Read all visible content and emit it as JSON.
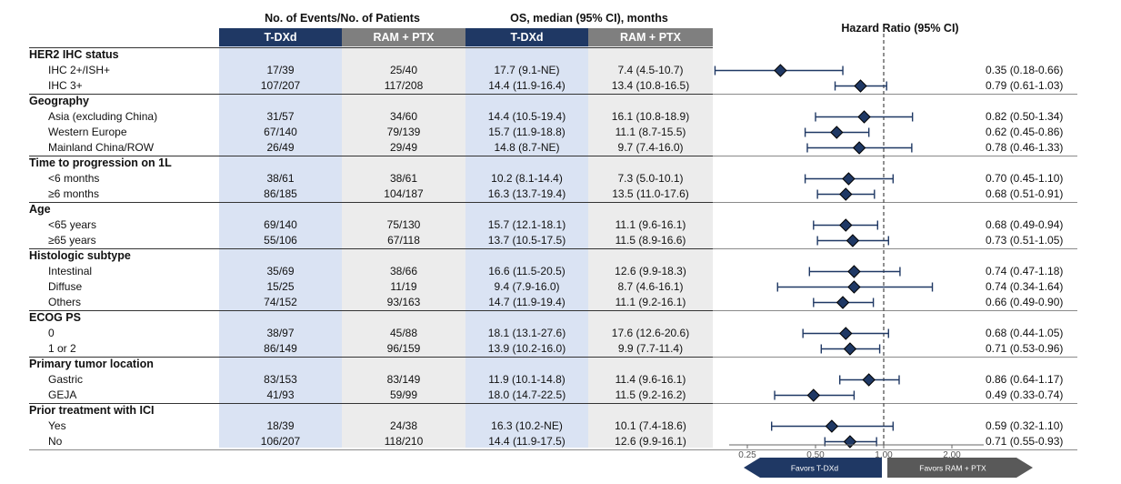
{
  "header": {
    "events_title": "No. of Events/No. of Patients",
    "os_title": "OS, median (95% CI), months",
    "hr_title": "Hazard Ratio (95% CI)",
    "arm1": "T-DXd",
    "arm2": "RAM + PTX"
  },
  "colors": {
    "arm1_header": "#1f3864",
    "arm2_header": "#7f7f7f",
    "arm1_col": "#dae3f3",
    "arm2_col": "#ececec",
    "marker": "#1f3864"
  },
  "groups": [
    {
      "label": "HER2 IHC status",
      "rows": [
        {
          "label": "IHC 2+/ISH+",
          "ev1": "17/39",
          "ev2": "25/40",
          "os1": "17.7 (9.1-NE)",
          "os2": "7.4 (4.5-10.7)",
          "hr_text": "0.35 (0.18-0.66)"
        },
        {
          "label": "IHC 3+",
          "ev1": "107/207",
          "ev2": "117/208",
          "os1": "14.4 (11.9-16.4)",
          "os2": "13.4 (10.8-16.5)",
          "hr_text": "0.79 (0.61-1.03)"
        }
      ]
    },
    {
      "label": "Geography",
      "rows": [
        {
          "label": "Asia (excluding China)",
          "ev1": "31/57",
          "ev2": "34/60",
          "os1": "14.4 (10.5-19.4)",
          "os2": "16.1 (10.8-18.9)",
          "hr_text": "0.82 (0.50-1.34)"
        },
        {
          "label": "Western Europe",
          "ev1": "67/140",
          "ev2": "79/139",
          "os1": "15.7 (11.9-18.8)",
          "os2": "11.1 (8.7-15.5)",
          "hr_text": "0.62 (0.45-0.86)"
        },
        {
          "label": "Mainland China/ROW",
          "ev1": "26/49",
          "ev2": "29/49",
          "os1": "14.8 (8.7-NE)",
          "os2": "9.7 (7.4-16.0)",
          "hr_text": "0.78 (0.46-1.33)"
        }
      ]
    },
    {
      "label": "Time to progression on 1L",
      "rows": [
        {
          "label": "<6 months",
          "ev1": "38/61",
          "ev2": "38/61",
          "os1": "10.2 (8.1-14.4)",
          "os2": "7.3 (5.0-10.1)",
          "hr_text": "0.70 (0.45-1.10)"
        },
        {
          "label": "≥6 months",
          "ev1": "86/185",
          "ev2": "104/187",
          "os1": "16.3 (13.7-19.4)",
          "os2": "13.5 (11.0-17.6)",
          "hr_text": "0.68 (0.51-0.91)"
        }
      ]
    },
    {
      "label": "Age",
      "rows": [
        {
          "label": "<65 years",
          "ev1": "69/140",
          "ev2": "75/130",
          "os1": "15.7 (12.1-18.1)",
          "os2": "11.1 (9.6-16.1)",
          "hr_text": "0.68 (0.49-0.94)"
        },
        {
          "label": "≥65 years",
          "ev1": "55/106",
          "ev2": "67/118",
          "os1": "13.7 (10.5-17.5)",
          "os2": "11.5 (8.9-16.6)",
          "hr_text": "0.73 (0.51-1.05)"
        }
      ]
    },
    {
      "label": "Histologic subtype",
      "rows": [
        {
          "label": "Intestinal",
          "ev1": "35/69",
          "ev2": "38/66",
          "os1": "16.6 (11.5-20.5)",
          "os2": "12.6 (9.9-18.3)",
          "hr_text": "0.74 (0.47-1.18)"
        },
        {
          "label": "Diffuse",
          "ev1": "15/25",
          "ev2": "11/19",
          "os1": "9.4 (7.9-16.0)",
          "os2": "8.7 (4.6-16.1)",
          "hr_text": "0.74 (0.34-1.64)"
        },
        {
          "label": "Others",
          "ev1": "74/152",
          "ev2": "93/163",
          "os1": "14.7 (11.9-19.4)",
          "os2": "11.1 (9.2-16.1)",
          "hr_text": "0.66 (0.49-0.90)"
        }
      ]
    },
    {
      "label": "ECOG PS",
      "rows": [
        {
          "label": "0",
          "ev1": "38/97",
          "ev2": "45/88",
          "os1": "18.1 (13.1-27.6)",
          "os2": "17.6 (12.6-20.6)",
          "hr_text": "0.68 (0.44-1.05)"
        },
        {
          "label": "1 or 2",
          "ev1": "86/149",
          "ev2": "96/159",
          "os1": "13.9 (10.2-16.0)",
          "os2": "9.9 (7.7-11.4)",
          "hr_text": "0.71 (0.53-0.96)"
        }
      ]
    },
    {
      "label": "Primary tumor location",
      "rows": [
        {
          "label": "Gastric",
          "ev1": "83/153",
          "ev2": "83/149",
          "os1": "11.9 (10.1-14.8)",
          "os2": "11.4 (9.6-16.1)",
          "hr_text": "0.86 (0.64-1.17)"
        },
        {
          "label": "GEJA",
          "ev1": "41/93",
          "ev2": "59/99",
          "os1": "18.0 (14.7-22.5)",
          "os2": "11.5 (9.2-16.2)",
          "hr_text": "0.49 (0.33-0.74)"
        }
      ]
    },
    {
      "label": "Prior treatment with ICI",
      "rows": [
        {
          "label": "Yes",
          "ev1": "18/39",
          "ev2": "24/38",
          "os1": "16.3 (10.2-NE)",
          "os2": "10.1 (7.4-18.6)",
          "hr_text": "0.59 (0.32-1.10)"
        },
        {
          "label": "No",
          "ev1": "106/207",
          "ev2": "118/210",
          "os1": "14.4 (11.9-17.5)",
          "os2": "12.6 (9.9-16.1)",
          "hr_text": "0.71 (0.55-0.93)"
        }
      ]
    }
  ],
  "chart_data": {
    "type": "forest",
    "title": "Hazard Ratio (95% CI)",
    "x_scale": "log",
    "xlim": [
      0.2,
      2.6
    ],
    "x_ticks": [
      "0.25",
      "0.50",
      "1.00",
      "2.00"
    ],
    "reference_line": 1.0,
    "favors_left": "Favors T-DXd",
    "favors_right": "Favors RAM + PTX",
    "points": [
      {
        "hr": 0.35,
        "lo": 0.18,
        "hi": 0.66
      },
      {
        "hr": 0.79,
        "lo": 0.61,
        "hi": 1.03
      },
      {
        "hr": 0.82,
        "lo": 0.5,
        "hi": 1.34
      },
      {
        "hr": 0.62,
        "lo": 0.45,
        "hi": 0.86
      },
      {
        "hr": 0.78,
        "lo": 0.46,
        "hi": 1.33
      },
      {
        "hr": 0.7,
        "lo": 0.45,
        "hi": 1.1
      },
      {
        "hr": 0.68,
        "lo": 0.51,
        "hi": 0.91
      },
      {
        "hr": 0.68,
        "lo": 0.49,
        "hi": 0.94
      },
      {
        "hr": 0.73,
        "lo": 0.51,
        "hi": 1.05
      },
      {
        "hr": 0.74,
        "lo": 0.47,
        "hi": 1.18
      },
      {
        "hr": 0.74,
        "lo": 0.34,
        "hi": 1.64
      },
      {
        "hr": 0.66,
        "lo": 0.49,
        "hi": 0.9
      },
      {
        "hr": 0.68,
        "lo": 0.44,
        "hi": 1.05
      },
      {
        "hr": 0.71,
        "lo": 0.53,
        "hi": 0.96
      },
      {
        "hr": 0.86,
        "lo": 0.64,
        "hi": 1.17
      },
      {
        "hr": 0.49,
        "lo": 0.33,
        "hi": 0.74
      },
      {
        "hr": 0.59,
        "lo": 0.32,
        "hi": 1.1
      },
      {
        "hr": 0.71,
        "lo": 0.55,
        "hi": 0.93
      }
    ]
  }
}
